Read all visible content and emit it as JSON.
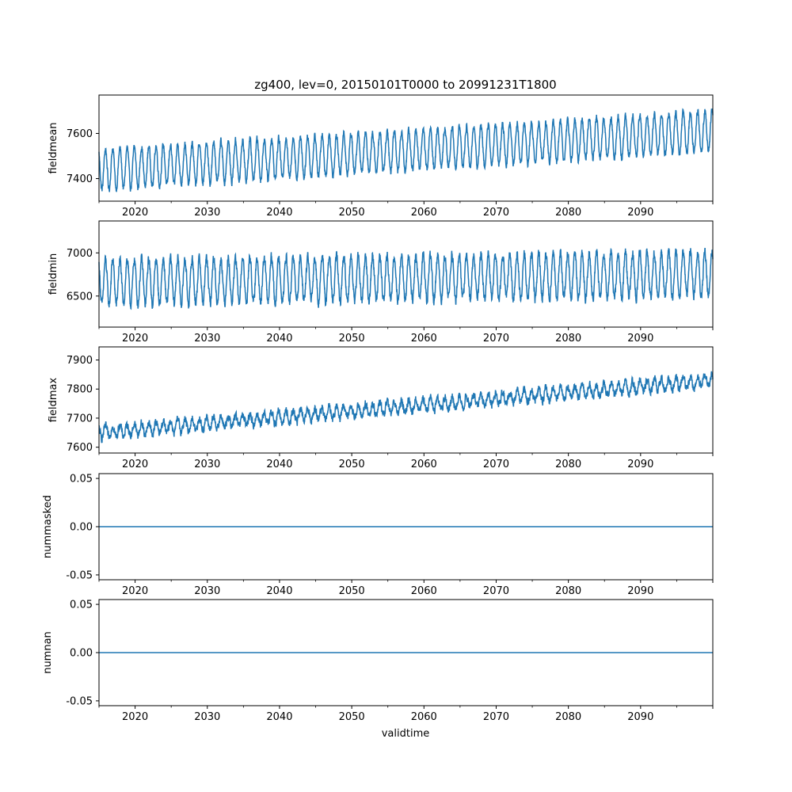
{
  "figure": {
    "title": "zg400, lev=0, 20150101T0000 to 20991231T1800",
    "xlabel": "validtime"
  },
  "colors": {
    "series": "#1f77b4",
    "axes": "#000000",
    "background": "#ffffff"
  },
  "chart_data": [
    {
      "type": "line",
      "ylabel": "fieldmean",
      "xlim": [
        2015.0,
        2100.0
      ],
      "ylim": [
        7300,
        7770
      ],
      "xticks": [
        "2020",
        "2030",
        "2040",
        "2050",
        "2060",
        "2070",
        "2080",
        "2090"
      ],
      "yticks": [
        "7400",
        "7600"
      ],
      "series": [
        {
          "x": [
            2015,
            2100
          ],
          "trend": [
            7440,
            7610
          ],
          "seasonal_amplitude": 90,
          "noise": 25,
          "period_years": 1
        }
      ]
    },
    {
      "type": "line",
      "ylabel": "fieldmin",
      "xlim": [
        2015.0,
        2100.0
      ],
      "ylim": [
        6140,
        7370
      ],
      "xticks": [
        "2020",
        "2030",
        "2040",
        "2050",
        "2060",
        "2070",
        "2080",
        "2090"
      ],
      "yticks": [
        "6500",
        "7000"
      ],
      "series": [
        {
          "x": [
            2015,
            2100
          ],
          "trend": [
            6660,
            6760
          ],
          "seasonal_amplitude": 260,
          "noise": 90,
          "period_years": 1
        }
      ]
    },
    {
      "type": "line",
      "ylabel": "fieldmax",
      "xlim": [
        2015.0,
        2100.0
      ],
      "ylim": [
        7580,
        7945
      ],
      "xticks": [
        "2020",
        "2030",
        "2040",
        "2050",
        "2060",
        "2070",
        "2080",
        "2090"
      ],
      "yticks": [
        "7600",
        "7700",
        "7800",
        "7900"
      ],
      "series": [
        {
          "x": [
            2015,
            2100
          ],
          "trend": [
            7650,
            7830
          ],
          "seasonal_amplitude": 20,
          "noise": 22,
          "period_years": 1
        }
      ]
    },
    {
      "type": "line",
      "ylabel": "nummasked",
      "xlim": [
        2015.0,
        2100.0
      ],
      "ylim": [
        -0.055,
        0.055
      ],
      "xticks": [
        "2020",
        "2030",
        "2040",
        "2050",
        "2060",
        "2070",
        "2080",
        "2090"
      ],
      "yticks": [
        "0.05",
        "0.00",
        "-0.05"
      ],
      "series": [
        {
          "x": [
            2015,
            2100
          ],
          "y": [
            0,
            0
          ]
        }
      ]
    },
    {
      "type": "line",
      "ylabel": "numnan",
      "xlim": [
        2015.0,
        2100.0
      ],
      "ylim": [
        -0.055,
        0.055
      ],
      "xticks": [
        "2020",
        "2030",
        "2040",
        "2050",
        "2060",
        "2070",
        "2080",
        "2090"
      ],
      "yticks": [
        "0.05",
        "0.00",
        "-0.05"
      ],
      "series": [
        {
          "x": [
            2015,
            2100
          ],
          "y": [
            0,
            0
          ]
        }
      ]
    }
  ]
}
